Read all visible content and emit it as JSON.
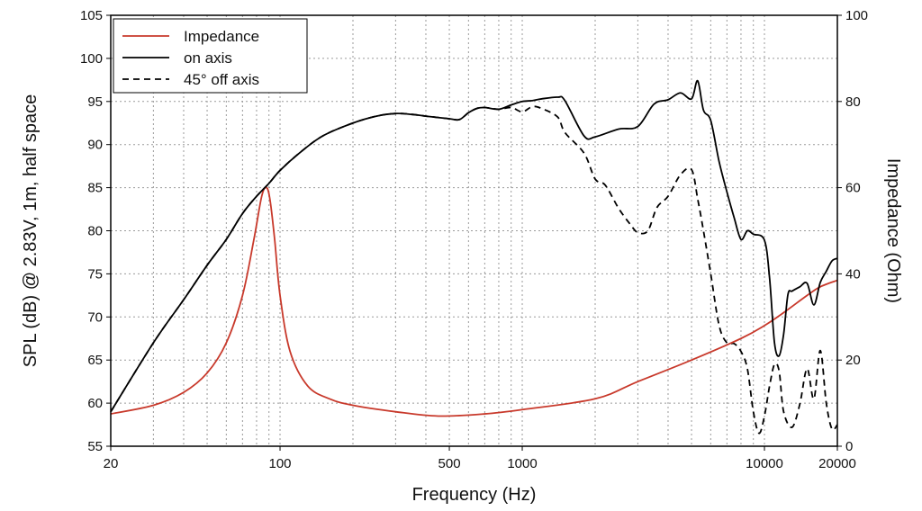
{
  "chart_data": {
    "type": "line",
    "x_scale": "log",
    "xlabel": "Frequency (Hz)",
    "ylabel": "SPL (dB) @ 2.83V, 1m, half space",
    "y2label": "Impedance (Ohm)",
    "xlim": [
      20,
      20000
    ],
    "ylim": [
      55,
      105
    ],
    "y2lim": [
      0,
      100
    ],
    "x_ticks": [
      20,
      100,
      500,
      1000,
      10000,
      20000
    ],
    "x_tick_labels": [
      "20",
      "100",
      "500",
      "1000",
      "10000",
      "20000"
    ],
    "y_ticks": [
      55,
      60,
      65,
      70,
      75,
      80,
      85,
      90,
      95,
      100,
      105
    ],
    "y2_ticks": [
      0,
      20,
      40,
      60,
      80,
      100
    ],
    "grid": true,
    "legend_position": "top-left",
    "series": [
      {
        "name": "Impedance",
        "axis": "right",
        "color": "#c8392b",
        "style": "solid",
        "x": [
          20,
          30,
          40,
          50,
          60,
          70,
          78,
          84,
          88,
          91,
          95,
          100,
          110,
          130,
          160,
          200,
          300,
          450,
          700,
          1000,
          2000,
          3000,
          5000,
          8000,
          10000,
          12000,
          15000,
          17000,
          20000
        ],
        "y": [
          7.5,
          9.5,
          12.5,
          17,
          24,
          35,
          48,
          58,
          60,
          57,
          48,
          35,
          22,
          14,
          11,
          9.5,
          8,
          7,
          7.5,
          8.5,
          11,
          15,
          20,
          25,
          28,
          31,
          35,
          37,
          38.5
        ]
      },
      {
        "name": "on axis",
        "axis": "left",
        "color": "#000000",
        "style": "solid",
        "x": [
          20,
          30,
          40,
          50,
          60,
          70,
          80,
          90,
          100,
          120,
          150,
          200,
          250,
          300,
          350,
          400,
          500,
          550,
          600,
          650,
          700,
          800,
          900,
          1000,
          1100,
          1200,
          1400,
          1500,
          1800,
          2000,
          2500,
          3000,
          3500,
          4000,
          4500,
          5000,
          5300,
          5600,
          6000,
          6500,
          7000,
          7500,
          8000,
          8500,
          9000,
          10000,
          10500,
          11000,
          11500,
          12000,
          12500,
          13000,
          14000,
          15000,
          16000,
          17000,
          18000,
          19000,
          20000
        ],
        "y": [
          59,
          67,
          72,
          76,
          79,
          82,
          84,
          85.5,
          87,
          89,
          91,
          92.5,
          93.3,
          93.6,
          93.5,
          93.3,
          93,
          92.9,
          93.7,
          94.2,
          94.3,
          94.1,
          94.6,
          95,
          95.1,
          95.3,
          95.5,
          95.1,
          91,
          90.9,
          91.8,
          92.1,
          94.7,
          95.2,
          96,
          95.3,
          97.4,
          94,
          92.8,
          88,
          84.5,
          81.5,
          79,
          80,
          79.6,
          78.9,
          74.5,
          67,
          65.5,
          68,
          72.6,
          73,
          73.5,
          73.9,
          71.4,
          74,
          75.3,
          76.5,
          76.8
        ]
      },
      {
        "name": "45° off axis",
        "axis": "left",
        "color": "#000000",
        "style": "dashed",
        "x": [
          20,
          30,
          40,
          50,
          60,
          70,
          80,
          90,
          100,
          120,
          150,
          200,
          250,
          300,
          350,
          400,
          500,
          550,
          600,
          650,
          700,
          800,
          900,
          1000,
          1100,
          1200,
          1400,
          1500,
          1800,
          2000,
          2200,
          2500,
          2800,
          3000,
          3300,
          3600,
          4000,
          4500,
          5000,
          5300,
          5600,
          6000,
          6500,
          7000,
          7500,
          8000,
          8500,
          9000,
          9500,
          10000,
          10500,
          11000,
          11500,
          12000,
          13000,
          14000,
          15000,
          16000,
          17000,
          18000,
          19000,
          20000
        ],
        "y": [
          59,
          67,
          72,
          76,
          79,
          82,
          84,
          85.5,
          87,
          89,
          91,
          92.5,
          93.3,
          93.6,
          93.5,
          93.3,
          93,
          92.9,
          93.7,
          94.2,
          94.3,
          94.1,
          94.3,
          93.8,
          94.4,
          94.2,
          93.2,
          91.4,
          89,
          86,
          85.3,
          82.6,
          80.7,
          79.8,
          80,
          82.7,
          84,
          86.5,
          87.1,
          83.7,
          80,
          75,
          69,
          67,
          66.9,
          66,
          64,
          59,
          56.5,
          58.5,
          62,
          64.5,
          63.7,
          59,
          57.2,
          59.9,
          64,
          60.5,
          66.1,
          60,
          57,
          57.5
        ]
      }
    ]
  }
}
